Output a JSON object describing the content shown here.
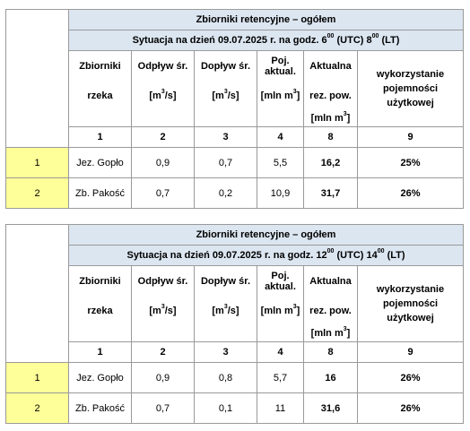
{
  "tables": [
    {
      "title": "Zbiorniki retencyjne – ogółem",
      "situation": {
        "prefix": "Sytuacja na dzień 09.07.2025 r. na godz. 6",
        "utc_sup": "00",
        "mid": " (UTC) 8",
        "lt_sup": "00",
        "suffix": " (LT)"
      },
      "headers": {
        "zbiorniki": "Zbiorniki",
        "rzeka": "rzeka",
        "odplyw": "Odpływ śr.",
        "doplyw": "Dopływ śr.",
        "poj": "Poj.",
        "aktual": "aktual.",
        "aktualna": "Aktualna",
        "rez_pow": "rez. pow.",
        "unit_m3s_open": "[m",
        "unit_m3s_sup": "3",
        "unit_m3s_close": "/s]",
        "unit_mln_open": "[mln m",
        "unit_mln_sup": "3",
        "unit_mln_close": "]",
        "wyk_1": "wykorzystanie",
        "wyk_2": "pojemności",
        "wyk_3": "użytkowej"
      },
      "col_numbers": [
        "1",
        "2",
        "3",
        "4",
        "8",
        "9"
      ],
      "rows": [
        {
          "lp": "1",
          "name": "Jez. Gopło",
          "odplyw": "0,9",
          "doplyw": "0,7",
          "poj": "5,5",
          "rez": "16,2",
          "wyk": "25%"
        },
        {
          "lp": "2",
          "name": "Zb. Pakość",
          "odplyw": "0,7",
          "doplyw": "0,2",
          "poj": "10,9",
          "rez": "31,7",
          "wyk": "26%"
        }
      ]
    },
    {
      "title": "Zbiorniki retencyjne – ogółem",
      "situation": {
        "prefix": "Sytuacja na dzień 09.07.2025 r. na godz. 12",
        "utc_sup": "00",
        "mid": " (UTC) 14",
        "lt_sup": "00",
        "suffix": " (LT)"
      },
      "headers": {
        "zbiorniki": "Zbiorniki",
        "rzeka": "rzeka",
        "odplyw": "Odpływ śr.",
        "doplyw": "Dopływ śr.",
        "poj": "Poj.",
        "aktual": "aktual.",
        "aktualna": "Aktualna",
        "rez_pow": "rez. pow.",
        "unit_m3s_open": "[m",
        "unit_m3s_sup": "3",
        "unit_m3s_close": "/s]",
        "unit_mln_open": "[mln m",
        "unit_mln_sup": "3",
        "unit_mln_close": "]",
        "wyk_1": "wykorzystanie",
        "wyk_2": "pojemności",
        "wyk_3": "użytkowej"
      },
      "col_numbers": [
        "1",
        "2",
        "3",
        "4",
        "8",
        "9"
      ],
      "rows": [
        {
          "lp": "1",
          "name": "Jez. Gopło",
          "odplyw": "0,9",
          "doplyw": "0,8",
          "poj": "5,7",
          "rez": "16",
          "wyk": "26%"
        },
        {
          "lp": "2",
          "name": "Zb. Pakość",
          "odplyw": "0,7",
          "doplyw": "0,1",
          "poj": "11",
          "rez": "31,6",
          "wyk": "26%"
        }
      ]
    }
  ]
}
